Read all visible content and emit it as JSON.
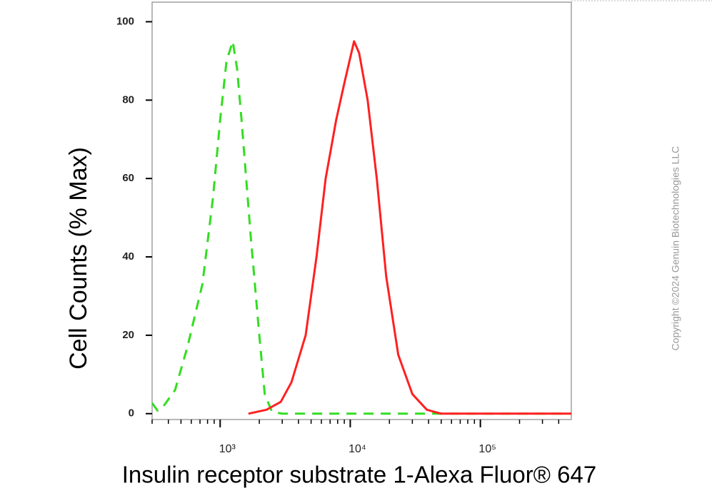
{
  "chart_data": {
    "type": "line",
    "xlabel": "Insulin receptor substrate 1-Alexa Fluor® 647",
    "ylabel": "Cell Counts (% Max)",
    "copyright": "Copyright ©2024 Genuin Biotechnologies LLC",
    "xscale": "log",
    "xlim": [
      300,
      500000
    ],
    "ylim": [
      -1.5,
      105
    ],
    "xticks": [
      {
        "value": 1000,
        "label": "10³"
      },
      {
        "value": 10000,
        "label": "10⁴"
      },
      {
        "value": 100000,
        "label": "10⁵"
      }
    ],
    "xminorticks": [
      300,
      400,
      500,
      600,
      700,
      800,
      900,
      2000,
      3000,
      4000,
      5000,
      6000,
      7000,
      8000,
      9000,
      20000,
      30000,
      40000,
      50000,
      60000,
      70000,
      80000,
      90000,
      200000,
      300000,
      400000
    ],
    "yticks": [
      0,
      20,
      40,
      60,
      80,
      100
    ],
    "series": [
      {
        "color": "#33dd22",
        "linestyle": "dashed",
        "x": [
          300,
          330,
          360,
          450,
          560,
          730,
          880,
          1000,
          1120,
          1250,
          1350,
          1460,
          1720,
          2000,
          2200,
          2500,
          3000,
          10000,
          500000
        ],
        "values": [
          2.7,
          0.8,
          1.5,
          6,
          17,
          33,
          55,
          75,
          90,
          95,
          88,
          75,
          45,
          20,
          5,
          0.5,
          0,
          0,
          0
        ]
      },
      {
        "color": "#ff2020",
        "linestyle": "solid",
        "x": [
          1650,
          2270,
          2920,
          3530,
          4540,
          5500,
          6470,
          7800,
          9100,
          10700,
          11700,
          13600,
          16000,
          18900,
          23400,
          30000,
          38800,
          50000,
          500000
        ],
        "values": [
          0,
          1,
          3,
          8,
          20,
          40,
          60,
          75,
          85,
          95,
          92,
          80,
          60,
          35,
          15,
          5,
          1,
          0,
          0
        ]
      }
    ]
  }
}
